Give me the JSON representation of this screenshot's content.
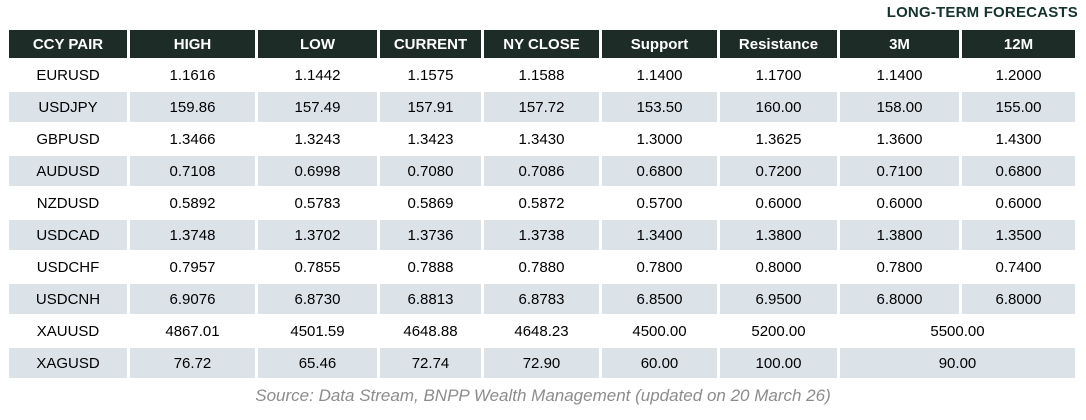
{
  "label": "LONG-TERM FORECASTS",
  "table": {
    "headers": [
      "CCY PAIR",
      "HIGH",
      "LOW",
      "CURRENT",
      "NY CLOSE",
      "Support",
      "Resistance",
      "3M",
      "12M"
    ],
    "rows": [
      {
        "cells": [
          "EURUSD",
          "1.1616",
          "1.1442",
          "1.1575",
          "1.1588",
          "1.1400",
          "1.1700",
          "1.1400",
          "1.2000"
        ]
      },
      {
        "cells": [
          "USDJPY",
          "159.86",
          "157.49",
          "157.91",
          "157.72",
          "153.50",
          "160.00",
          "158.00",
          "155.00"
        ]
      },
      {
        "cells": [
          "GBPUSD",
          "1.3466",
          "1.3243",
          "1.3423",
          "1.3430",
          "1.3000",
          "1.3625",
          "1.3600",
          "1.4300"
        ]
      },
      {
        "cells": [
          "AUDUSD",
          "0.7108",
          "0.6998",
          "0.7080",
          "0.7086",
          "0.6800",
          "0.7200",
          "0.7100",
          "0.6800"
        ]
      },
      {
        "cells": [
          "NZDUSD",
          "0.5892",
          "0.5783",
          "0.5869",
          "0.5872",
          "0.5700",
          "0.6000",
          "0.6000",
          "0.6000"
        ]
      },
      {
        "cells": [
          "USDCAD",
          "1.3748",
          "1.3702",
          "1.3736",
          "1.3738",
          "1.3400",
          "1.3800",
          "1.3800",
          "1.3500"
        ]
      },
      {
        "cells": [
          "USDCHF",
          "0.7957",
          "0.7855",
          "0.7888",
          "0.7880",
          "0.7800",
          "0.8000",
          "0.7800",
          "0.7400"
        ]
      },
      {
        "cells": [
          "USDCNH",
          "6.9076",
          "6.8730",
          "6.8813",
          "6.8783",
          "6.8500",
          "6.9500",
          "6.8000",
          "6.8000"
        ]
      },
      {
        "cells": [
          "XAUUSD",
          "4867.01",
          "4501.59",
          "4648.88",
          "4648.23",
          "4500.00",
          "5200.00",
          "5500.00"
        ],
        "merge_last": true
      },
      {
        "cells": [
          "XAGUSD",
          "76.72",
          "65.46",
          "72.74",
          "72.90",
          "60.00",
          "100.00",
          "90.00"
        ],
        "merge_last": true
      }
    ]
  },
  "source": "Source: Data Stream, BNPP Wealth Management (updated on 20 March 26)",
  "colors": {
    "header_bg": "#1e2c27",
    "header_text": "#ffffff",
    "alt_row_bg": "#dbe3e9",
    "label_text": "#16332d",
    "source_text": "#8c8c8c"
  },
  "chart_data": {
    "type": "table",
    "title": "LONG-TERM FORECASTS",
    "columns": [
      "CCY PAIR",
      "HIGH",
      "LOW",
      "CURRENT",
      "NY CLOSE",
      "Support",
      "Resistance",
      "3M",
      "12M"
    ],
    "rows": [
      [
        "EURUSD",
        1.1616,
        1.1442,
        1.1575,
        1.1588,
        1.14,
        1.17,
        1.14,
        1.2
      ],
      [
        "USDJPY",
        159.86,
        157.49,
        157.91,
        157.72,
        153.5,
        160.0,
        158.0,
        155.0
      ],
      [
        "GBPUSD",
        1.3466,
        1.3243,
        1.3423,
        1.343,
        1.3,
        1.3625,
        1.36,
        1.43
      ],
      [
        "AUDUSD",
        0.7108,
        0.6998,
        0.708,
        0.7086,
        0.68,
        0.72,
        0.71,
        0.68
      ],
      [
        "NZDUSD",
        0.5892,
        0.5783,
        0.5869,
        0.5872,
        0.57,
        0.6,
        0.6,
        0.6
      ],
      [
        "USDCAD",
        1.3748,
        1.3702,
        1.3736,
        1.3738,
        1.34,
        1.38,
        1.38,
        1.35
      ],
      [
        "USDCHF",
        0.7957,
        0.7855,
        0.7888,
        0.788,
        0.78,
        0.8,
        0.78,
        0.74
      ],
      [
        "USDCNH",
        6.9076,
        6.873,
        6.8813,
        6.8783,
        6.85,
        6.95,
        6.8,
        6.8
      ],
      [
        "XAUUSD",
        4867.01,
        4501.59,
        4648.88,
        4648.23,
        4500.0,
        5200.0,
        5500.0,
        5500.0
      ],
      [
        "XAGUSD",
        76.72,
        65.46,
        72.74,
        72.9,
        60.0,
        100.0,
        90.0,
        90.0
      ]
    ],
    "notes": "XAUUSD and XAGUSD have a single merged forecast cell spanning 3M and 12M columns (5500.00 and 90.00 respectively).",
    "source": "Source: Data Stream, BNPP Wealth Management (updated on 20 March 26)"
  }
}
